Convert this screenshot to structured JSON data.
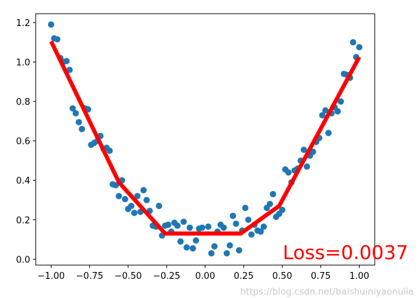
{
  "chart_data": {
    "type": "scatter",
    "xlim": [
      -1.1,
      1.1
    ],
    "ylim": [
      -0.03,
      1.245
    ],
    "x_ticks": [
      "−1.00",
      "−0.75",
      "−0.50",
      "−0.25",
      "0.00",
      "0.25",
      "0.50",
      "0.75",
      "1.00"
    ],
    "x_tick_values": [
      -1.0,
      -0.75,
      -0.5,
      -0.25,
      0.0,
      0.25,
      0.5,
      0.75,
      1.0
    ],
    "y_ticks": [
      "0.0",
      "0.2",
      "0.4",
      "0.6",
      "0.8",
      "1.0",
      "1.2"
    ],
    "y_tick_values": [
      0.0,
      0.2,
      0.4,
      0.6,
      0.8,
      1.0,
      1.2
    ],
    "grid": false,
    "scatter": {
      "color": "#1f77b4",
      "points": [
        [
          -1.0,
          1.19
        ],
        [
          -0.98,
          1.12
        ],
        [
          -0.96,
          1.115
        ],
        [
          -0.94,
          1.02
        ],
        [
          -0.92,
          1.0
        ],
        [
          -0.9,
          1.005
        ],
        [
          -0.88,
          0.96
        ],
        [
          -0.86,
          0.765
        ],
        [
          -0.84,
          0.74
        ],
        [
          -0.82,
          0.695
        ],
        [
          -0.8,
          0.66
        ],
        [
          -0.78,
          0.765
        ],
        [
          -0.76,
          0.76
        ],
        [
          -0.74,
          0.58
        ],
        [
          -0.72,
          0.59
        ],
        [
          -0.7,
          0.6
        ],
        [
          -0.68,
          0.625
        ],
        [
          -0.66,
          0.56
        ],
        [
          -0.64,
          0.565
        ],
        [
          -0.62,
          0.55
        ],
        [
          -0.6,
          0.38
        ],
        [
          -0.58,
          0.375
        ],
        [
          -0.56,
          0.32
        ],
        [
          -0.54,
          0.4
        ],
        [
          -0.52,
          0.305
        ],
        [
          -0.5,
          0.255
        ],
        [
          -0.48,
          0.27
        ],
        [
          -0.46,
          0.235
        ],
        [
          -0.44,
          0.32
        ],
        [
          -0.42,
          0.24
        ],
        [
          -0.4,
          0.35
        ],
        [
          -0.38,
          0.3
        ],
        [
          -0.36,
          0.245
        ],
        [
          -0.34,
          0.17
        ],
        [
          -0.32,
          0.165
        ],
        [
          -0.3,
          0.27
        ],
        [
          -0.28,
          0.12
        ],
        [
          -0.26,
          0.17
        ],
        [
          -0.24,
          0.175
        ],
        [
          -0.22,
          0.14
        ],
        [
          -0.2,
          0.185
        ],
        [
          -0.18,
          0.17
        ],
        [
          -0.16,
          0.09
        ],
        [
          -0.14,
          0.19
        ],
        [
          -0.12,
          0.06
        ],
        [
          -0.1,
          0.16
        ],
        [
          -0.08,
          0.055
        ],
        [
          -0.06,
          0.095
        ],
        [
          -0.04,
          0.155
        ],
        [
          -0.02,
          0.16
        ],
        [
          0.02,
          0.165
        ],
        [
          0.04,
          0.03
        ],
        [
          0.06,
          0.065
        ],
        [
          0.08,
          0.14
        ],
        [
          0.1,
          0.175
        ],
        [
          0.12,
          0.16
        ],
        [
          0.14,
          0.03
        ],
        [
          0.16,
          0.07
        ],
        [
          0.18,
          0.22
        ],
        [
          0.2,
          0.18
        ],
        [
          0.22,
          0.045
        ],
        [
          0.24,
          0.145
        ],
        [
          0.26,
          0.26
        ],
        [
          0.28,
          0.2
        ],
        [
          0.3,
          0.125
        ],
        [
          0.32,
          0.175
        ],
        [
          0.34,
          0.145
        ],
        [
          0.36,
          0.14
        ],
        [
          0.38,
          0.165
        ],
        [
          0.4,
          0.26
        ],
        [
          0.42,
          0.28
        ],
        [
          0.44,
          0.33
        ],
        [
          0.46,
          0.215
        ],
        [
          0.48,
          0.23
        ],
        [
          0.5,
          0.25
        ],
        [
          0.52,
          0.455
        ],
        [
          0.54,
          0.44
        ],
        [
          0.56,
          0.39
        ],
        [
          0.58,
          0.45
        ],
        [
          0.6,
          0.46
        ],
        [
          0.62,
          0.5
        ],
        [
          0.64,
          0.555
        ],
        [
          0.66,
          0.47
        ],
        [
          0.68,
          0.525
        ],
        [
          0.7,
          0.545
        ],
        [
          0.72,
          0.595
        ],
        [
          0.74,
          0.615
        ],
        [
          0.76,
          0.73
        ],
        [
          0.78,
          0.755
        ],
        [
          0.8,
          0.64
        ],
        [
          0.82,
          0.74
        ],
        [
          0.84,
          0.77
        ],
        [
          0.86,
          0.75
        ],
        [
          0.88,
          0.8
        ],
        [
          0.9,
          0.94
        ],
        [
          0.92,
          0.935
        ],
        [
          0.94,
          0.92
        ],
        [
          0.96,
          1.1
        ],
        [
          0.98,
          1.025
        ],
        [
          1.0,
          1.075
        ]
      ]
    },
    "fit_line": {
      "color": "#ff0000",
      "points": [
        [
          -1.0,
          1.105
        ],
        [
          -0.56,
          0.39
        ],
        [
          -0.26,
          0.13
        ],
        [
          0.23,
          0.13
        ],
        [
          0.48,
          0.27
        ],
        [
          1.0,
          1.025
        ]
      ]
    },
    "annotations": [
      {
        "text": "Loss=0.0037",
        "color": "#ff0000"
      }
    ]
  },
  "watermark": "https://blog.csdn.net/baishuiniyaonulia"
}
